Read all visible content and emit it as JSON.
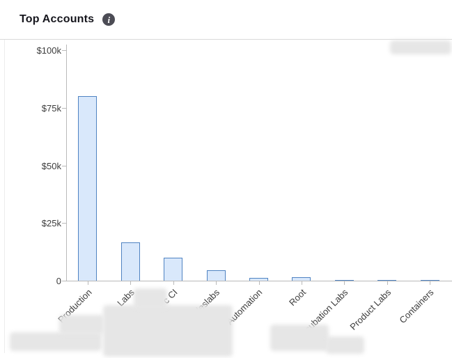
{
  "header": {
    "title": "Top Accounts",
    "info_glyph": "i"
  },
  "chart_data": {
    "type": "bar",
    "title": "Top Accounts",
    "categories": [
      "Production",
      "Labs",
      "c CI",
      "-saleslabs",
      "Automation",
      "Root",
      "Incubation Labs",
      "Product Labs",
      "Containers"
    ],
    "values": [
      80000,
      16500,
      10000,
      4500,
      1300,
      1400,
      400,
      300,
      300
    ],
    "xlabel": "",
    "ylabel": "",
    "ylim": [
      0,
      100000
    ],
    "yticks": [
      {
        "label": "$100k",
        "value": 100000
      },
      {
        "label": "$75k",
        "value": 75000
      },
      {
        "label": "$50k",
        "value": 50000
      },
      {
        "label": "$25k",
        "value": 25000
      },
      {
        "label": "0",
        "value": 0
      }
    ],
    "bar_fill": "#d9e8fb",
    "bar_stroke": "#4f83c2",
    "grid": false,
    "legend": false,
    "x_labels_rotation_deg": -45
  }
}
